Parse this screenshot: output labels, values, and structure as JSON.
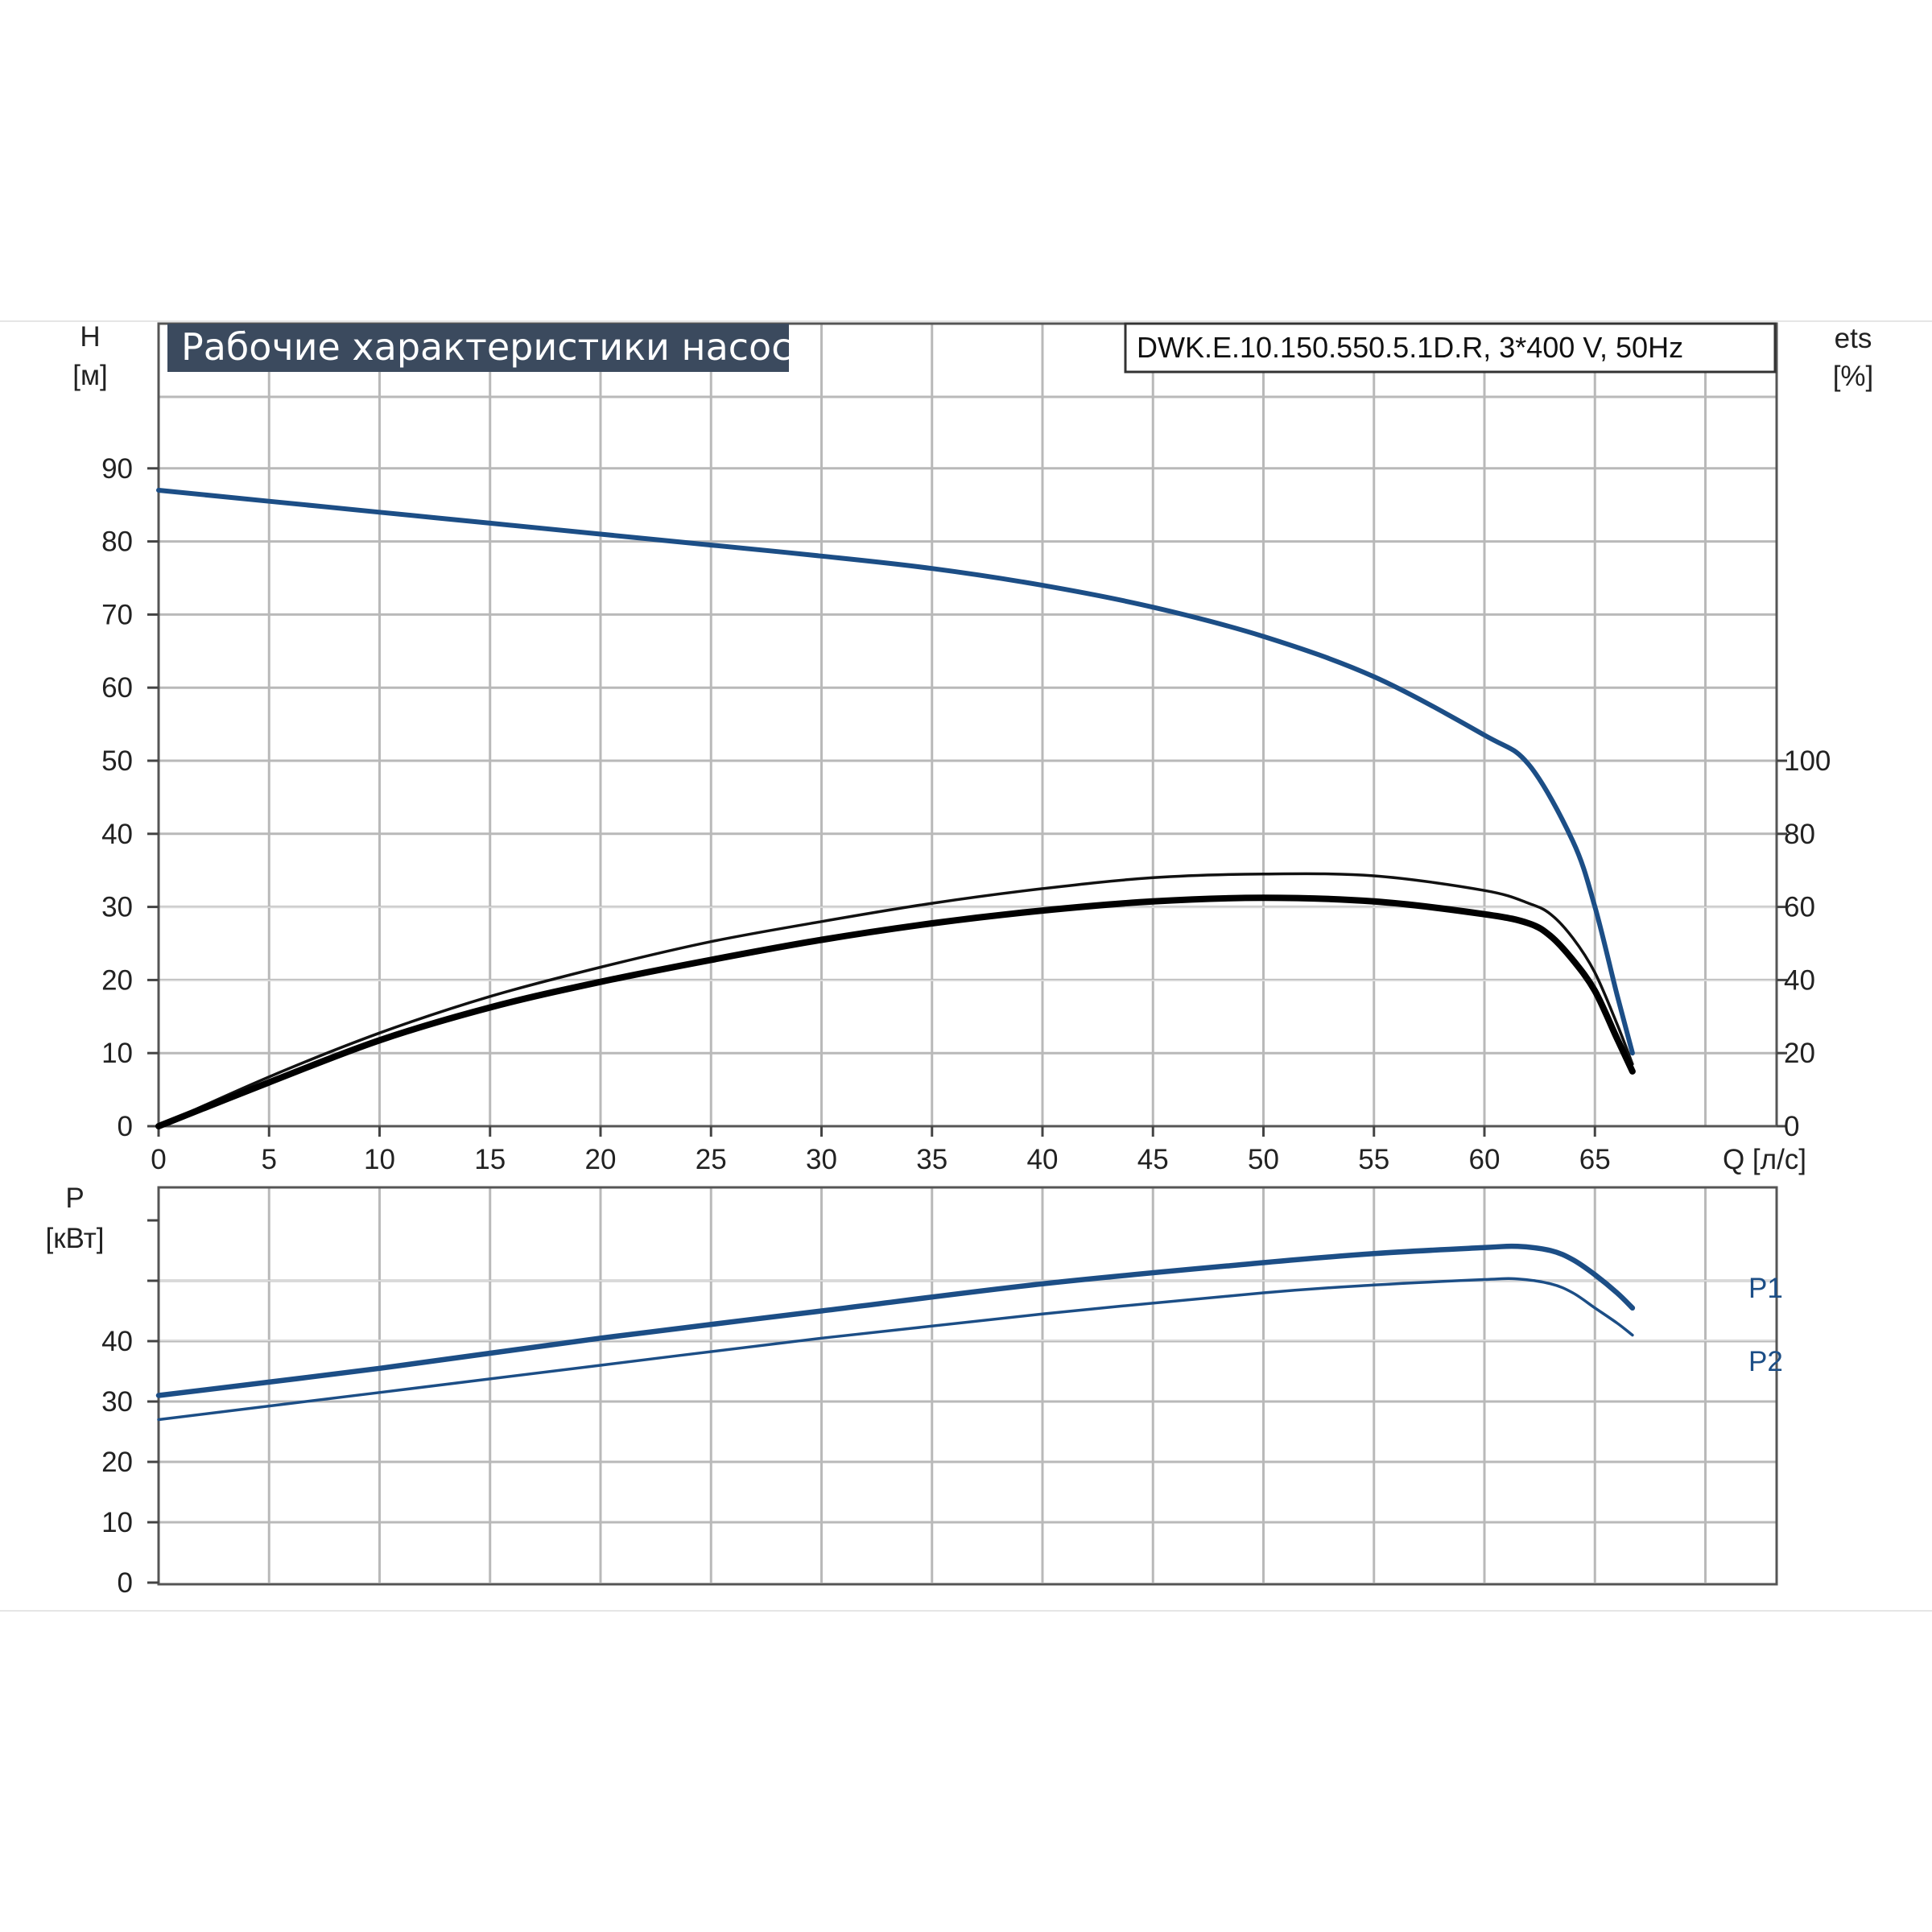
{
  "chart_data": [
    {
      "type": "line",
      "title": "Рабочие характеристики насоса",
      "model": "DWK.E.10.150.550.5.1D.R, 3*400 V, 50Hz",
      "ylabel": "H",
      "yunit": "[м]",
      "y2label": "ets",
      "y2unit": "[%]",
      "xlabel": "Q [л/с]",
      "xlim": [
        0,
        73
      ],
      "ylim": [
        0,
        100
      ],
      "y2lim": [
        0,
        100
      ],
      "x_ticks": [
        "0",
        "5",
        "10",
        "15",
        "20",
        "25",
        "30",
        "35",
        "40",
        "45",
        "50",
        "55",
        "60",
        "65"
      ],
      "y_ticks": [
        "0",
        "10",
        "20",
        "30",
        "40",
        "50",
        "60",
        "70",
        "80",
        "90"
      ],
      "y2_ticks": [
        "0",
        "20",
        "40",
        "60",
        "80",
        "100"
      ],
      "grid": true,
      "series": [
        {
          "axis": "left",
          "color": "#1c4e86",
          "x": [
            0,
            5,
            10,
            15,
            20,
            25,
            30,
            35,
            40,
            45,
            50,
            55,
            60,
            62,
            64,
            65,
            66,
            66.7
          ],
          "y": [
            87,
            85.5,
            84,
            82.5,
            81,
            79.5,
            78,
            76.3,
            74,
            71,
            67,
            61.5,
            53.5,
            49.5,
            39,
            30,
            18,
            10
          ]
        },
        {
          "axis": "right",
          "color": "#111111",
          "x": [
            0,
            5,
            10,
            15,
            20,
            25,
            30,
            35,
            40,
            45,
            50,
            55,
            60,
            62,
            63,
            64,
            65,
            66,
            66.7
          ],
          "y": [
            0,
            13.5,
            25.5,
            35.5,
            43.5,
            50.5,
            56,
            61,
            65,
            68,
            69,
            68.5,
            64.5,
            61,
            58,
            51.5,
            42,
            28,
            17
          ]
        },
        {
          "axis": "right",
          "color": "#000000",
          "x": [
            0,
            5,
            10,
            15,
            20,
            25,
            30,
            35,
            40,
            45,
            50,
            55,
            60,
            62,
            63,
            64,
            65,
            66,
            66.7
          ],
          "y": [
            0,
            12,
            23.5,
            32.5,
            39.5,
            45.5,
            51,
            55.5,
            59,
            61.5,
            62.5,
            61.5,
            58,
            55.5,
            52,
            45.5,
            37,
            24,
            15
          ]
        }
      ]
    },
    {
      "type": "line",
      "ylabel": "P",
      "yunit": "[кВт]",
      "xlim": [
        0,
        73
      ],
      "ylim": [
        0,
        60
      ],
      "y_ticks": [
        "0",
        "10",
        "20",
        "30",
        "40"
      ],
      "grid": true,
      "series": [
        {
          "name": "P1",
          "color": "#1c4e86",
          "x": [
            0,
            10,
            20,
            30,
            40,
            50,
            55,
            60,
            61.5,
            63,
            64,
            65,
            66,
            66.7
          ],
          "y": [
            31,
            35.5,
            40.5,
            45,
            49.5,
            53,
            54.5,
            55.5,
            55.7,
            55,
            53.5,
            51,
            48,
            45.5
          ]
        },
        {
          "name": "P2",
          "color": "#1c4e86",
          "x": [
            0,
            10,
            20,
            30,
            40,
            50,
            55,
            60,
            61.5,
            63,
            64,
            65,
            66,
            66.7
          ],
          "y": [
            27,
            31.5,
            36,
            40.5,
            44.5,
            48,
            49.3,
            50.2,
            50.3,
            49.5,
            48,
            45.5,
            43,
            41
          ]
        }
      ]
    }
  ]
}
